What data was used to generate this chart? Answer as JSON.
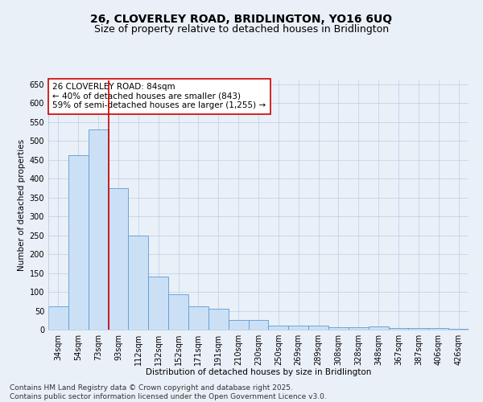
{
  "title_line1": "26, CLOVERLEY ROAD, BRIDLINGTON, YO16 6UQ",
  "title_line2": "Size of property relative to detached houses in Bridlington",
  "xlabel": "Distribution of detached houses by size in Bridlington",
  "ylabel": "Number of detached properties",
  "categories": [
    "34sqm",
    "54sqm",
    "73sqm",
    "93sqm",
    "112sqm",
    "132sqm",
    "152sqm",
    "171sqm",
    "191sqm",
    "210sqm",
    "230sqm",
    "250sqm",
    "269sqm",
    "289sqm",
    "308sqm",
    "328sqm",
    "348sqm",
    "367sqm",
    "387sqm",
    "406sqm",
    "426sqm"
  ],
  "values": [
    62,
    462,
    530,
    375,
    250,
    140,
    93,
    62,
    55,
    25,
    25,
    10,
    10,
    10,
    6,
    6,
    8,
    5,
    5,
    5,
    3
  ],
  "bar_color": "#cce0f5",
  "bar_edge_color": "#5b9bd5",
  "vline_x": 2.5,
  "vline_color": "#cc0000",
  "annotation_text": "26 CLOVERLEY ROAD: 84sqm\n← 40% of detached houses are smaller (843)\n59% of semi-detached houses are larger (1,255) →",
  "annotation_box_color": "#ffffff",
  "annotation_box_edge": "#cc0000",
  "ylim": [
    0,
    660
  ],
  "yticks": [
    0,
    50,
    100,
    150,
    200,
    250,
    300,
    350,
    400,
    450,
    500,
    550,
    600,
    650
  ],
  "background_color": "#eaf0f8",
  "footer_line1": "Contains HM Land Registry data © Crown copyright and database right 2025.",
  "footer_line2": "Contains public sector information licensed under the Open Government Licence v3.0.",
  "title_fontsize": 10,
  "subtitle_fontsize": 9,
  "axis_label_fontsize": 7.5,
  "tick_fontsize": 7,
  "annotation_fontsize": 7.5,
  "footer_fontsize": 6.5
}
